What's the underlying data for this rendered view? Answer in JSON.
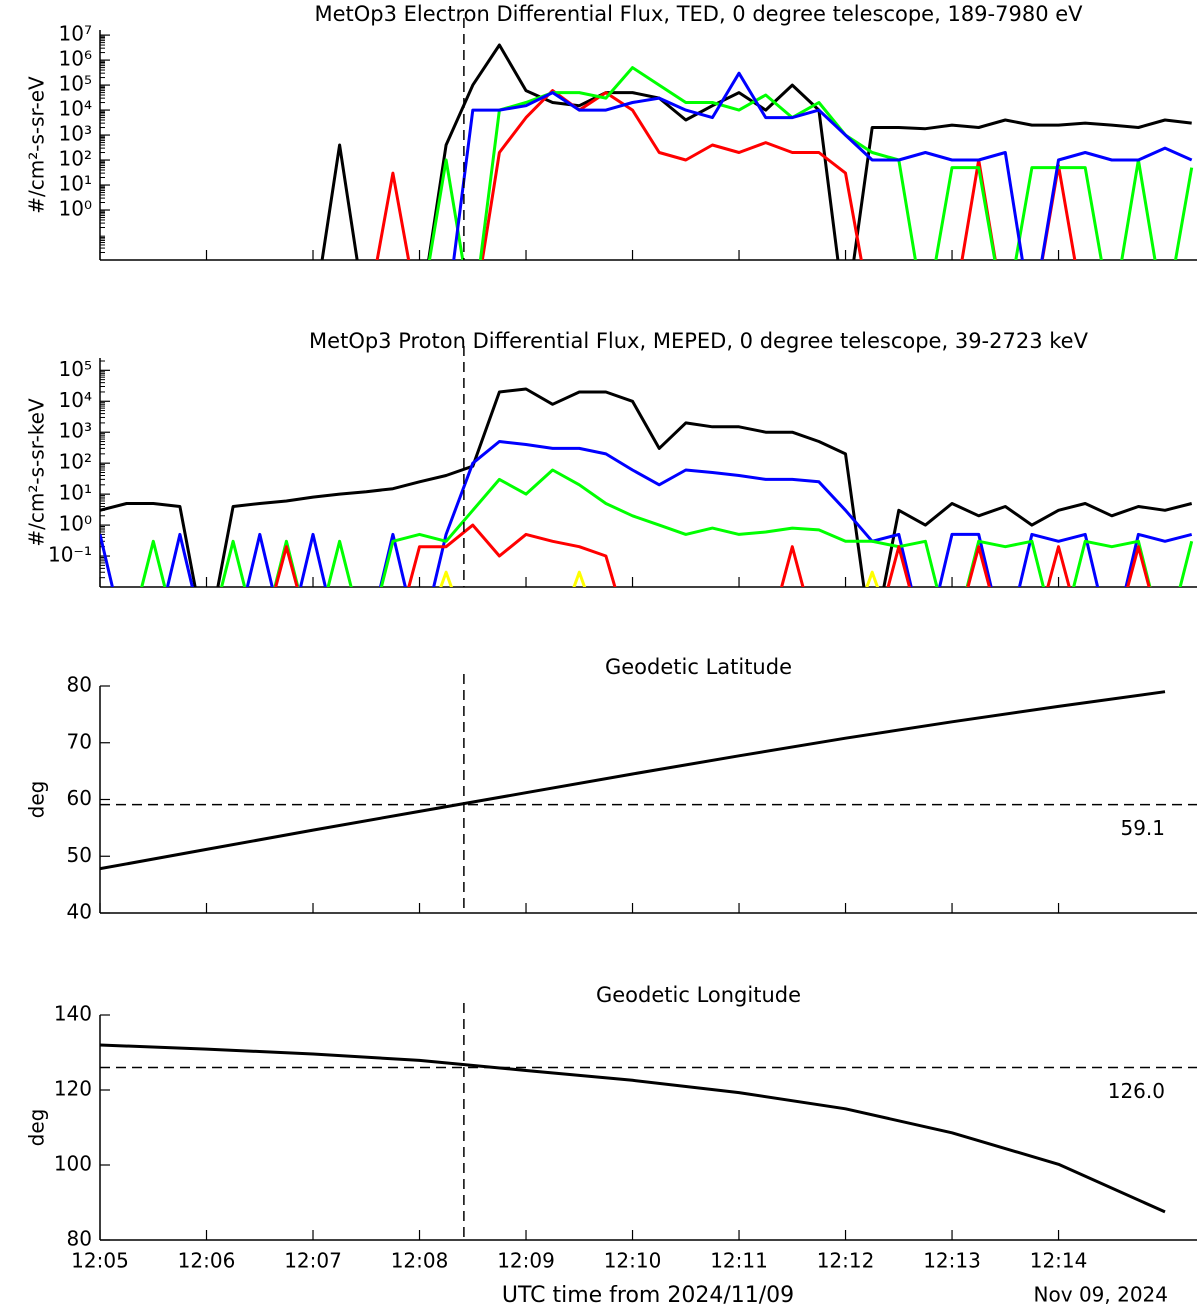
{
  "chart_data": [
    {
      "type": "line",
      "title": "MetOp3 Electron Differential Flux, TED, 0 degree telescope, 189-7980 eV",
      "y_label": "#/cm²-s-sr-eV",
      "log": true,
      "x": [
        "12:05:00",
        "12:05:15",
        "12:05:30",
        "12:05:45",
        "12:06:00",
        "12:06:15",
        "12:06:30",
        "12:06:45",
        "12:07:00",
        "12:07:15",
        "12:07:30",
        "12:07:45",
        "12:08:00",
        "12:08:15",
        "12:08:30",
        "12:08:45",
        "12:09:00",
        "12:09:15",
        "12:09:30",
        "12:09:45",
        "12:10:00",
        "12:10:15",
        "12:10:30",
        "12:10:45",
        "12:11:00",
        "12:11:15",
        "12:11:30",
        "12:11:45",
        "12:12:00",
        "12:12:15",
        "12:12:30",
        "12:12:45",
        "12:13:00",
        "12:13:15",
        "12:13:30",
        "12:13:45",
        "12:14:00",
        "12:14:15",
        "12:14:30",
        "12:14:45",
        "12:15:00",
        "12:15:15"
      ],
      "xlim": [
        "12:05:00",
        "12:15:18"
      ],
      "vline": "12:08:25",
      "ylim": [
        0.01,
        16000000
      ],
      "yticks": [
        {
          "value": 1,
          "label": "10⁰"
        },
        {
          "value": 10,
          "label": "10¹"
        },
        {
          "value": 100,
          "label": "10²"
        },
        {
          "value": 1000,
          "label": "10³"
        },
        {
          "value": 10000,
          "label": "10⁴"
        },
        {
          "value": 100000,
          "label": "10⁵"
        },
        {
          "value": 1000000,
          "label": "10⁶"
        },
        {
          "value": 10000000,
          "label": "10⁷"
        }
      ],
      "series": [
        {
          "color": "#000000",
          "values": [
            0,
            0,
            0,
            0,
            0,
            0,
            0,
            0,
            0,
            400,
            0,
            0,
            0,
            400,
            100000,
            4000000,
            60000,
            20000,
            15000,
            50000,
            50000,
            30000,
            4000,
            15000,
            50000,
            10000,
            100000,
            10000,
            0,
            2000,
            2000,
            1800,
            2500,
            2000,
            4000,
            2500,
            2500,
            3000,
            2500,
            2000,
            4000,
            3000
          ]
        },
        {
          "color": "#ff0000",
          "values": [
            0,
            0,
            0,
            0,
            0,
            0,
            0,
            0,
            0,
            0,
            0,
            30,
            0,
            0,
            0,
            200,
            5000,
            60000,
            10000,
            50000,
            10000,
            200,
            100,
            400,
            200,
            500,
            200,
            200,
            30,
            0,
            0,
            0,
            0,
            100,
            0,
            0,
            60,
            0,
            0,
            0,
            0,
            0
          ]
        },
        {
          "color": "#00ff00",
          "values": [
            0,
            0,
            0,
            0,
            0,
            0,
            0,
            0,
            0,
            0,
            0,
            0,
            0,
            100,
            0,
            10000,
            20000,
            50000,
            50000,
            30000,
            500000,
            100000,
            20000,
            20000,
            10000,
            40000,
            5000,
            20000,
            1000,
            200,
            100,
            0,
            50,
            50,
            0,
            50,
            50,
            50,
            0,
            100,
            0,
            50
          ]
        },
        {
          "color": "#0000ff",
          "values": [
            0,
            0,
            0,
            0,
            0,
            0,
            0,
            0,
            0,
            0,
            0,
            0,
            0,
            0,
            10000,
            10000,
            15000,
            50000,
            10000,
            10000,
            20000,
            30000,
            10000,
            5000,
            300000,
            5000,
            5000,
            10000,
            1000,
            100,
            100,
            200,
            100,
            100,
            200,
            0,
            100,
            200,
            100,
            100,
            300,
            100
          ]
        }
      ]
    },
    {
      "type": "line",
      "title": "MetOp3 Proton Differential Flux, MEPED, 0 degree telescope, 39-2723 keV",
      "y_label": "#/cm²-s-sr-keV",
      "log": true,
      "x": [
        "12:05:00",
        "12:05:15",
        "12:05:30",
        "12:05:45",
        "12:06:00",
        "12:06:15",
        "12:06:30",
        "12:06:45",
        "12:07:00",
        "12:07:15",
        "12:07:30",
        "12:07:45",
        "12:08:00",
        "12:08:15",
        "12:08:30",
        "12:08:45",
        "12:09:00",
        "12:09:15",
        "12:09:30",
        "12:09:45",
        "12:10:00",
        "12:10:15",
        "12:10:30",
        "12:10:45",
        "12:11:00",
        "12:11:15",
        "12:11:30",
        "12:11:45",
        "12:12:00",
        "12:12:15",
        "12:12:30",
        "12:12:45",
        "12:13:00",
        "12:13:15",
        "12:13:30",
        "12:13:45",
        "12:14:00",
        "12:14:15",
        "12:14:30",
        "12:14:45",
        "12:15:00",
        "12:15:15"
      ],
      "xlim": [
        "12:05:00",
        "12:15:18"
      ],
      "vline": "12:08:25",
      "ylim": [
        0.01,
        250000
      ],
      "yticks": [
        {
          "value": 0.1,
          "label": "10⁻¹"
        },
        {
          "value": 1,
          "label": "10⁰"
        },
        {
          "value": 10,
          "label": "10¹"
        },
        {
          "value": 100,
          "label": "10²"
        },
        {
          "value": 1000,
          "label": "10³"
        },
        {
          "value": 10000,
          "label": "10⁴"
        },
        {
          "value": 100000,
          "label": "10⁵"
        }
      ],
      "series": [
        {
          "color": "#000000",
          "values": [
            3,
            5,
            5,
            4,
            0,
            4,
            5,
            6,
            8,
            10,
            12,
            15,
            25,
            40,
            80,
            20000,
            25000,
            8000,
            20000,
            20000,
            10000,
            300,
            2000,
            1500,
            1500,
            1000,
            1000,
            500,
            200,
            0,
            3,
            1,
            5,
            2,
            4,
            1,
            3,
            5,
            2,
            4,
            3,
            5
          ]
        },
        {
          "color": "#0000ff",
          "values": [
            0.5,
            0,
            0,
            0.5,
            0,
            0,
            0.5,
            0,
            0.5,
            0,
            0,
            0.5,
            0,
            0.5,
            100,
            500,
            400,
            300,
            300,
            200,
            60,
            20,
            60,
            50,
            40,
            30,
            30,
            25,
            3,
            0.3,
            0.5,
            0,
            0.5,
            0.5,
            0,
            0.5,
            0.3,
            0.5,
            0,
            0.5,
            0.3,
            0.5
          ]
        },
        {
          "color": "#00ff00",
          "values": [
            0,
            0,
            0.3,
            0,
            0,
            0.3,
            0,
            0.3,
            0,
            0.3,
            0,
            0.3,
            0.5,
            0.3,
            3,
            30,
            10,
            60,
            20,
            5,
            2,
            1,
            0.5,
            0.8,
            0.5,
            0.6,
            0.8,
            0.7,
            0.3,
            0.3,
            0.2,
            0.3,
            0,
            0.3,
            0.2,
            0.3,
            0,
            0.3,
            0.2,
            0.3,
            0,
            0.3
          ]
        },
        {
          "color": "#ff0000",
          "values": [
            0,
            0,
            0,
            0,
            0,
            0,
            0,
            0.2,
            0,
            0,
            0,
            0,
            0.2,
            0.2,
            1,
            0.1,
            0.5,
            0.3,
            0.2,
            0.1,
            0,
            0,
            0,
            0,
            0,
            0,
            0.2,
            0,
            0,
            0,
            0.2,
            0,
            0,
            0.2,
            0,
            0,
            0.2,
            0,
            0,
            0.2,
            0,
            0
          ]
        },
        {
          "color": "#ffff00",
          "values": [
            0,
            0,
            0,
            0,
            0,
            0,
            0,
            0,
            0,
            0,
            0,
            0,
            0,
            0.03,
            0,
            0,
            0,
            0,
            0.03,
            0,
            0,
            0,
            0,
            0,
            0,
            0,
            0,
            0,
            0,
            0.03,
            0,
            0,
            0,
            0,
            0,
            0,
            0,
            0,
            0,
            0,
            0,
            0
          ]
        }
      ]
    },
    {
      "type": "line",
      "title": "Geodetic Latitude",
      "y_label": "deg",
      "log": false,
      "x": [
        "12:05:00",
        "12:06:00",
        "12:07:00",
        "12:08:00",
        "12:09:00",
        "12:10:00",
        "12:11:00",
        "12:12:00",
        "12:13:00",
        "12:14:00",
        "12:15:00"
      ],
      "xlim": [
        "12:05:00",
        "12:15:18"
      ],
      "vline": "12:08:25",
      "hline": 59.1,
      "hline_label": "59.1",
      "ylim": [
        40,
        80
      ],
      "yticks": [
        40,
        50,
        60,
        70,
        80
      ],
      "series": [
        {
          "color": "#000000",
          "values": [
            47.8,
            51.2,
            54.6,
            57.9,
            61.2,
            64.5,
            67.7,
            70.8,
            73.7,
            76.4,
            79.0
          ]
        }
      ]
    },
    {
      "type": "line",
      "title": "Geodetic Longitude",
      "y_label": "deg",
      "log": false,
      "x": [
        "12:05:00",
        "12:06:00",
        "12:07:00",
        "12:08:00",
        "12:09:00",
        "12:10:00",
        "12:11:00",
        "12:12:00",
        "12:13:00",
        "12:14:00",
        "12:15:00"
      ],
      "xlim": [
        "12:05:00",
        "12:15:18"
      ],
      "vline": "12:08:25",
      "hline": 126,
      "hline_label": "126.0",
      "ylim": [
        80,
        140
      ],
      "yticks": [
        80,
        100,
        120,
        140
      ],
      "series": [
        {
          "color": "#000000",
          "values": [
            132.0,
            130.9,
            129.6,
            127.9,
            125.2,
            122.6,
            119.3,
            115.0,
            108.6,
            100.2,
            87.5
          ]
        }
      ],
      "xticks": [
        "12:05",
        "12:06",
        "12:07",
        "12:08",
        "12:09",
        "12:10",
        "12:11",
        "12:12",
        "12:13",
        "12:14"
      ],
      "x_label": "UTC time from 2024/11/09",
      "date_label": "Nov 09, 2024"
    }
  ]
}
